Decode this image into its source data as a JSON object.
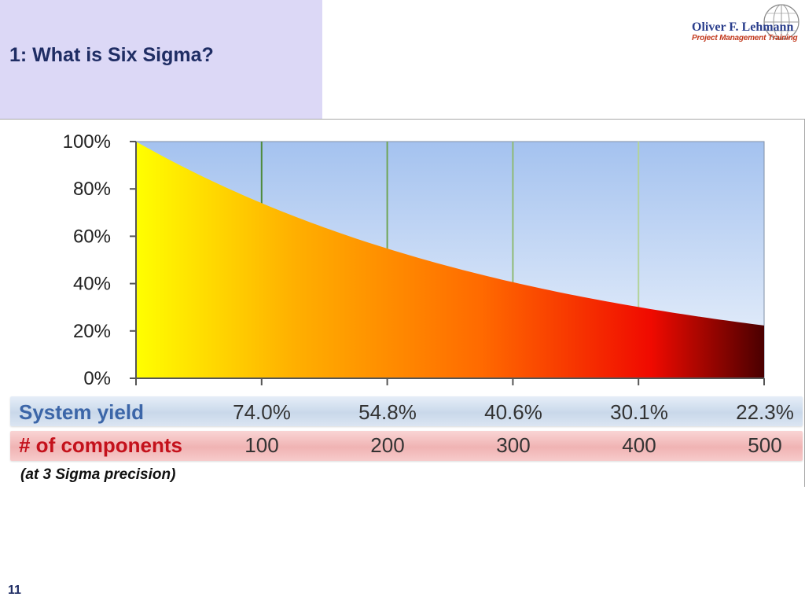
{
  "slide": {
    "title": "1: What is Six Sigma?",
    "page_number": "11"
  },
  "logo": {
    "name": "Oliver F. Lehmann",
    "subtitle": "Project Management Training"
  },
  "colors": {
    "title_panel": "#dcd8f6",
    "title_text": "#1f2d64",
    "yield_label": "#3c66a8",
    "components_label": "#c4111b",
    "area_gradient": [
      "#ffff00",
      "#ffb000",
      "#ff6a00",
      "#f00a00",
      "#4a0000"
    ],
    "plot_background": [
      "#a4c2ef",
      "#eef4fc"
    ]
  },
  "chart_data": {
    "type": "area",
    "x": [
      0,
      100,
      200,
      300,
      400,
      500
    ],
    "values": [
      1.0,
      0.74,
      0.548,
      0.406,
      0.301,
      0.223
    ],
    "ylim": [
      0,
      1
    ],
    "yticks": [
      0,
      0.2,
      0.4,
      0.6,
      0.8,
      1.0
    ],
    "ytick_labels": [
      "0%",
      "20%",
      "40%",
      "60%",
      "80%",
      "100%"
    ],
    "vertical_gridlines_at": [
      100,
      200,
      300,
      400
    ],
    "title": "",
    "xlabel": "",
    "ylabel": ""
  },
  "table": {
    "yield_label": "System yield",
    "components_label": "# of components",
    "yield_values": [
      "74.0%",
      "54.8%",
      "40.6%",
      "30.1%",
      "22.3%"
    ],
    "component_values": [
      "100",
      "200",
      "300",
      "400",
      "500"
    ],
    "footnote": "(at 3 Sigma precision)"
  }
}
